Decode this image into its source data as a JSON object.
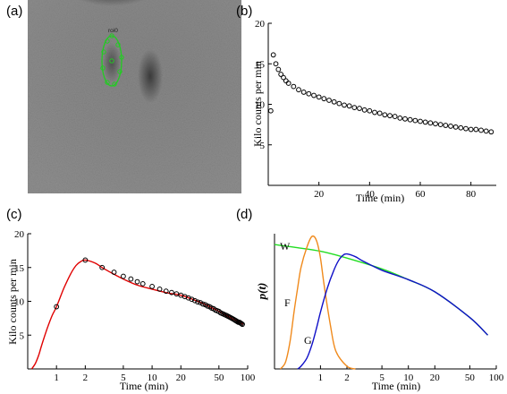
{
  "panels": {
    "a": {
      "label": "(a)",
      "roi_label": "roi0"
    },
    "b": {
      "label": "(b)"
    },
    "c": {
      "label": "(c)"
    },
    "d": {
      "label": "(d)"
    }
  },
  "colors": {
    "fit_curve": "#e00000",
    "W": "#22dd22",
    "F": "#f08a1c",
    "G": "#1010c8",
    "roi": "#22cc22"
  },
  "chart_data": [
    {
      "panel": "b",
      "type": "scatter",
      "xlabel": "Time (min)",
      "ylabel": "Kilo counts per min",
      "xlim": [
        0,
        90
      ],
      "ylim": [
        0,
        20
      ],
      "xticks": [
        20,
        40,
        60,
        80
      ],
      "yticks": [
        5,
        10,
        15,
        20
      ],
      "series": [
        {
          "x": [
            1,
            2,
            3,
            4,
            5,
            6,
            7,
            8,
            10,
            12,
            14,
            16,
            18,
            20,
            22,
            24,
            26,
            28,
            30,
            32,
            34,
            36,
            38,
            40,
            42,
            44,
            46,
            48,
            50,
            52,
            54,
            56,
            58,
            60,
            62,
            64,
            66,
            68,
            70,
            72,
            74,
            76,
            78,
            80,
            82,
            84,
            86,
            88
          ],
          "y": [
            9.2,
            16.1,
            15.0,
            14.3,
            13.7,
            13.3,
            12.9,
            12.6,
            12.2,
            11.8,
            11.5,
            11.3,
            11.1,
            10.9,
            10.7,
            10.5,
            10.3,
            10.1,
            9.9,
            9.8,
            9.6,
            9.5,
            9.3,
            9.2,
            9.0,
            8.9,
            8.7,
            8.6,
            8.5,
            8.3,
            8.2,
            8.1,
            8.0,
            7.9,
            7.8,
            7.7,
            7.6,
            7.5,
            7.4,
            7.3,
            7.2,
            7.1,
            7.0,
            6.9,
            6.9,
            6.8,
            6.7,
            6.6
          ]
        }
      ]
    },
    {
      "panel": "c",
      "type": "scatter",
      "xscale": "log",
      "xlabel": "Time (min)",
      "ylabel": "Kilo counts per min",
      "xlim": [
        0.5,
        100
      ],
      "ylim": [
        0,
        20
      ],
      "xticks": [
        1,
        2,
        5,
        10,
        20,
        50,
        100
      ],
      "xticklabels": [
        "1",
        "2",
        "5",
        "10",
        "20",
        "50",
        "100"
      ],
      "yticks": [
        5,
        10,
        15,
        20
      ],
      "series": [
        {
          "name": "data",
          "x": [
            1,
            2,
            3,
            4,
            5,
            6,
            7,
            8,
            10,
            12,
            14,
            16,
            18,
            20,
            22,
            24,
            26,
            28,
            30,
            32,
            34,
            36,
            38,
            40,
            42,
            44,
            46,
            48,
            50,
            52,
            54,
            56,
            58,
            60,
            62,
            64,
            66,
            68,
            70,
            72,
            74,
            76,
            78,
            80,
            82,
            84,
            86,
            88
          ],
          "y": [
            9.2,
            16.1,
            15.0,
            14.3,
            13.7,
            13.3,
            12.9,
            12.6,
            12.2,
            11.8,
            11.5,
            11.3,
            11.1,
            10.9,
            10.7,
            10.5,
            10.3,
            10.1,
            9.9,
            9.8,
            9.6,
            9.5,
            9.3,
            9.2,
            9.0,
            8.9,
            8.7,
            8.6,
            8.5,
            8.3,
            8.2,
            8.1,
            8.0,
            7.9,
            7.8,
            7.7,
            7.6,
            7.5,
            7.4,
            7.3,
            7.2,
            7.1,
            7.0,
            6.9,
            6.9,
            6.8,
            6.7,
            6.6
          ]
        },
        {
          "name": "fit",
          "type": "line",
          "x": [
            0.55,
            0.6,
            0.65,
            0.7,
            0.8,
            0.9,
            1.0,
            1.2,
            1.4,
            1.6,
            1.8,
            2.0,
            2.5,
            3,
            4,
            5,
            7,
            10,
            15,
            20,
            30,
            40,
            50,
            60,
            70,
            80,
            90
          ],
          "y": [
            0.0,
            0.8,
            2.0,
            3.5,
            6.0,
            7.9,
            9.2,
            12.0,
            14.0,
            15.3,
            15.9,
            16.1,
            15.7,
            15.0,
            14.0,
            13.3,
            12.4,
            11.8,
            11.2,
            10.9,
            10.0,
            9.2,
            8.5,
            7.9,
            7.4,
            7.0,
            6.6
          ]
        }
      ]
    },
    {
      "panel": "d",
      "type": "line",
      "xscale": "log",
      "xlabel": "Time (min)",
      "ylabel": "p(t)",
      "xlim": [
        0.3,
        100
      ],
      "xticks": [
        1,
        2,
        5,
        10,
        20,
        50,
        100
      ],
      "xticklabels": [
        "1",
        "2",
        "5",
        "10",
        "20",
        "50",
        "100"
      ],
      "series": [
        {
          "name": "W",
          "x": [
            0.3,
            0.5,
            1,
            2,
            5,
            10,
            20,
            50,
            80
          ],
          "y": [
            0.92,
            0.9,
            0.87,
            0.82,
            0.74,
            0.66,
            0.57,
            0.38,
            0.25
          ]
        },
        {
          "name": "F",
          "x": [
            0.35,
            0.4,
            0.45,
            0.5,
            0.55,
            0.6,
            0.7,
            0.8,
            0.9,
            1.0,
            1.1,
            1.3,
            1.5,
            2.0,
            2.5
          ],
          "y": [
            0.0,
            0.05,
            0.2,
            0.42,
            0.6,
            0.75,
            0.9,
            0.98,
            0.95,
            0.82,
            0.62,
            0.32,
            0.13,
            0.02,
            0.0
          ]
        },
        {
          "name": "G",
          "x": [
            0.55,
            0.6,
            0.7,
            0.8,
            0.9,
            1.0,
            1.2,
            1.4,
            1.6,
            1.8,
            2.0,
            2.5,
            3,
            5,
            10,
            20,
            50,
            80
          ],
          "y": [
            0.0,
            0.02,
            0.08,
            0.18,
            0.3,
            0.42,
            0.6,
            0.72,
            0.8,
            0.84,
            0.85,
            0.83,
            0.8,
            0.73,
            0.66,
            0.57,
            0.38,
            0.25
          ]
        }
      ]
    }
  ]
}
